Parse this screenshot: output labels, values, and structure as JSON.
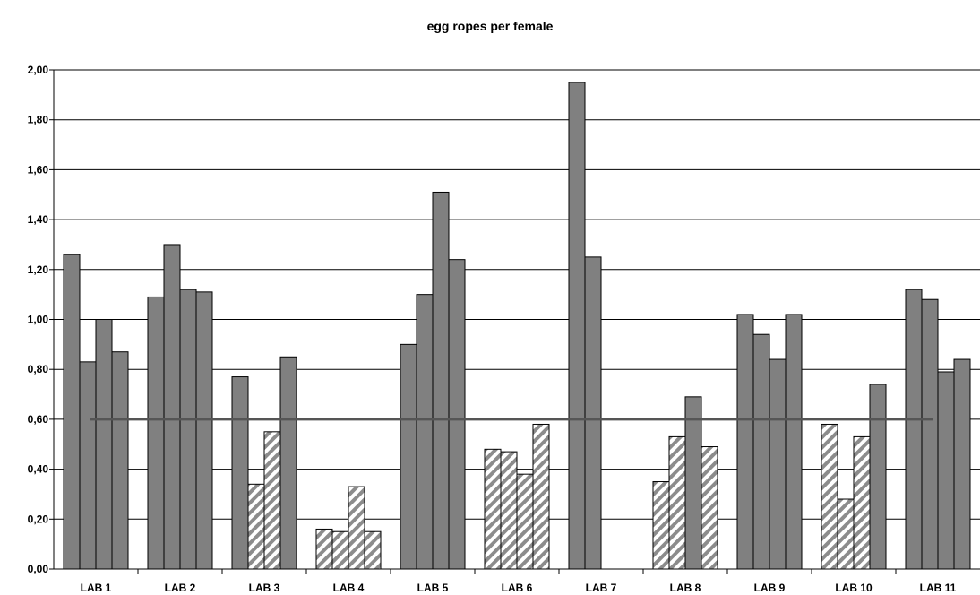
{
  "chart_data": {
    "type": "bar",
    "title": "egg ropes per female",
    "xlabel": "",
    "ylabel": "",
    "ylim": [
      0,
      2
    ],
    "yticks": [
      "0,00",
      "0,20",
      "0,40",
      "0,60",
      "0,80",
      "1,00",
      "1,20",
      "1,40",
      "1,60",
      "1,80",
      "2,00"
    ],
    "grid": true,
    "legend": false,
    "reference_line": {
      "value": 0.6,
      "color": "#555555"
    },
    "colors": {
      "solid": "#808080",
      "hatched_fill": "#ffffff",
      "hatched_stripe": "#8c8c8c",
      "outline": "#000000"
    },
    "categories": [
      "LAB 1",
      "LAB 2",
      "LAB 3",
      "LAB 4",
      "LAB 5",
      "LAB 6",
      "LAB 7",
      "LAB 8",
      "LAB 9",
      "LAB 10",
      "LAB 11"
    ],
    "groups": [
      {
        "label": "LAB 1",
        "bars": [
          {
            "v": 1.26,
            "h": false
          },
          {
            "v": 0.83,
            "h": false
          },
          {
            "v": 1.0,
            "h": false
          },
          {
            "v": 0.87,
            "h": false
          }
        ]
      },
      {
        "label": "LAB 2",
        "bars": [
          {
            "v": 1.09,
            "h": false
          },
          {
            "v": 1.3,
            "h": false
          },
          {
            "v": 1.12,
            "h": false
          },
          {
            "v": 1.11,
            "h": false
          }
        ]
      },
      {
        "label": "LAB 3",
        "bars": [
          {
            "v": 0.77,
            "h": false
          },
          {
            "v": 0.34,
            "h": true
          },
          {
            "v": 0.55,
            "h": true
          },
          {
            "v": 0.85,
            "h": false
          }
        ]
      },
      {
        "label": "LAB 4",
        "bars": [
          {
            "v": 0.16,
            "h": true
          },
          {
            "v": 0.15,
            "h": true
          },
          {
            "v": 0.33,
            "h": true
          },
          {
            "v": 0.15,
            "h": true
          }
        ]
      },
      {
        "label": "LAB 5",
        "bars": [
          {
            "v": 0.9,
            "h": false
          },
          {
            "v": 1.1,
            "h": false
          },
          {
            "v": 1.51,
            "h": false
          },
          {
            "v": 1.24,
            "h": false
          }
        ]
      },
      {
        "label": "LAB 6",
        "bars": [
          {
            "v": 0.48,
            "h": true
          },
          {
            "v": 0.47,
            "h": true
          },
          {
            "v": 0.38,
            "h": true
          },
          {
            "v": 0.58,
            "h": true
          }
        ]
      },
      {
        "label": "LAB 7",
        "bars": [
          {
            "v": 1.95,
            "h": false
          },
          {
            "v": 1.25,
            "h": false
          }
        ]
      },
      {
        "label": "LAB 8",
        "bars": [
          {
            "v": 0.35,
            "h": true
          },
          {
            "v": 0.53,
            "h": true
          },
          {
            "v": 0.69,
            "h": false
          },
          {
            "v": 0.49,
            "h": true
          }
        ]
      },
      {
        "label": "LAB 9",
        "bars": [
          {
            "v": 1.02,
            "h": false
          },
          {
            "v": 0.94,
            "h": false
          },
          {
            "v": 0.84,
            "h": false
          },
          {
            "v": 1.02,
            "h": false
          }
        ]
      },
      {
        "label": "LAB 10",
        "bars": [
          {
            "v": 0.58,
            "h": true
          },
          {
            "v": 0.28,
            "h": true
          },
          {
            "v": 0.53,
            "h": true
          },
          {
            "v": 0.74,
            "h": false
          }
        ]
      },
      {
        "label": "LAB 11",
        "bars": [
          {
            "v": 1.12,
            "h": false
          },
          {
            "v": 1.08,
            "h": false
          },
          {
            "v": 0.79,
            "h": false
          },
          {
            "v": 0.84,
            "h": false
          }
        ]
      }
    ]
  }
}
